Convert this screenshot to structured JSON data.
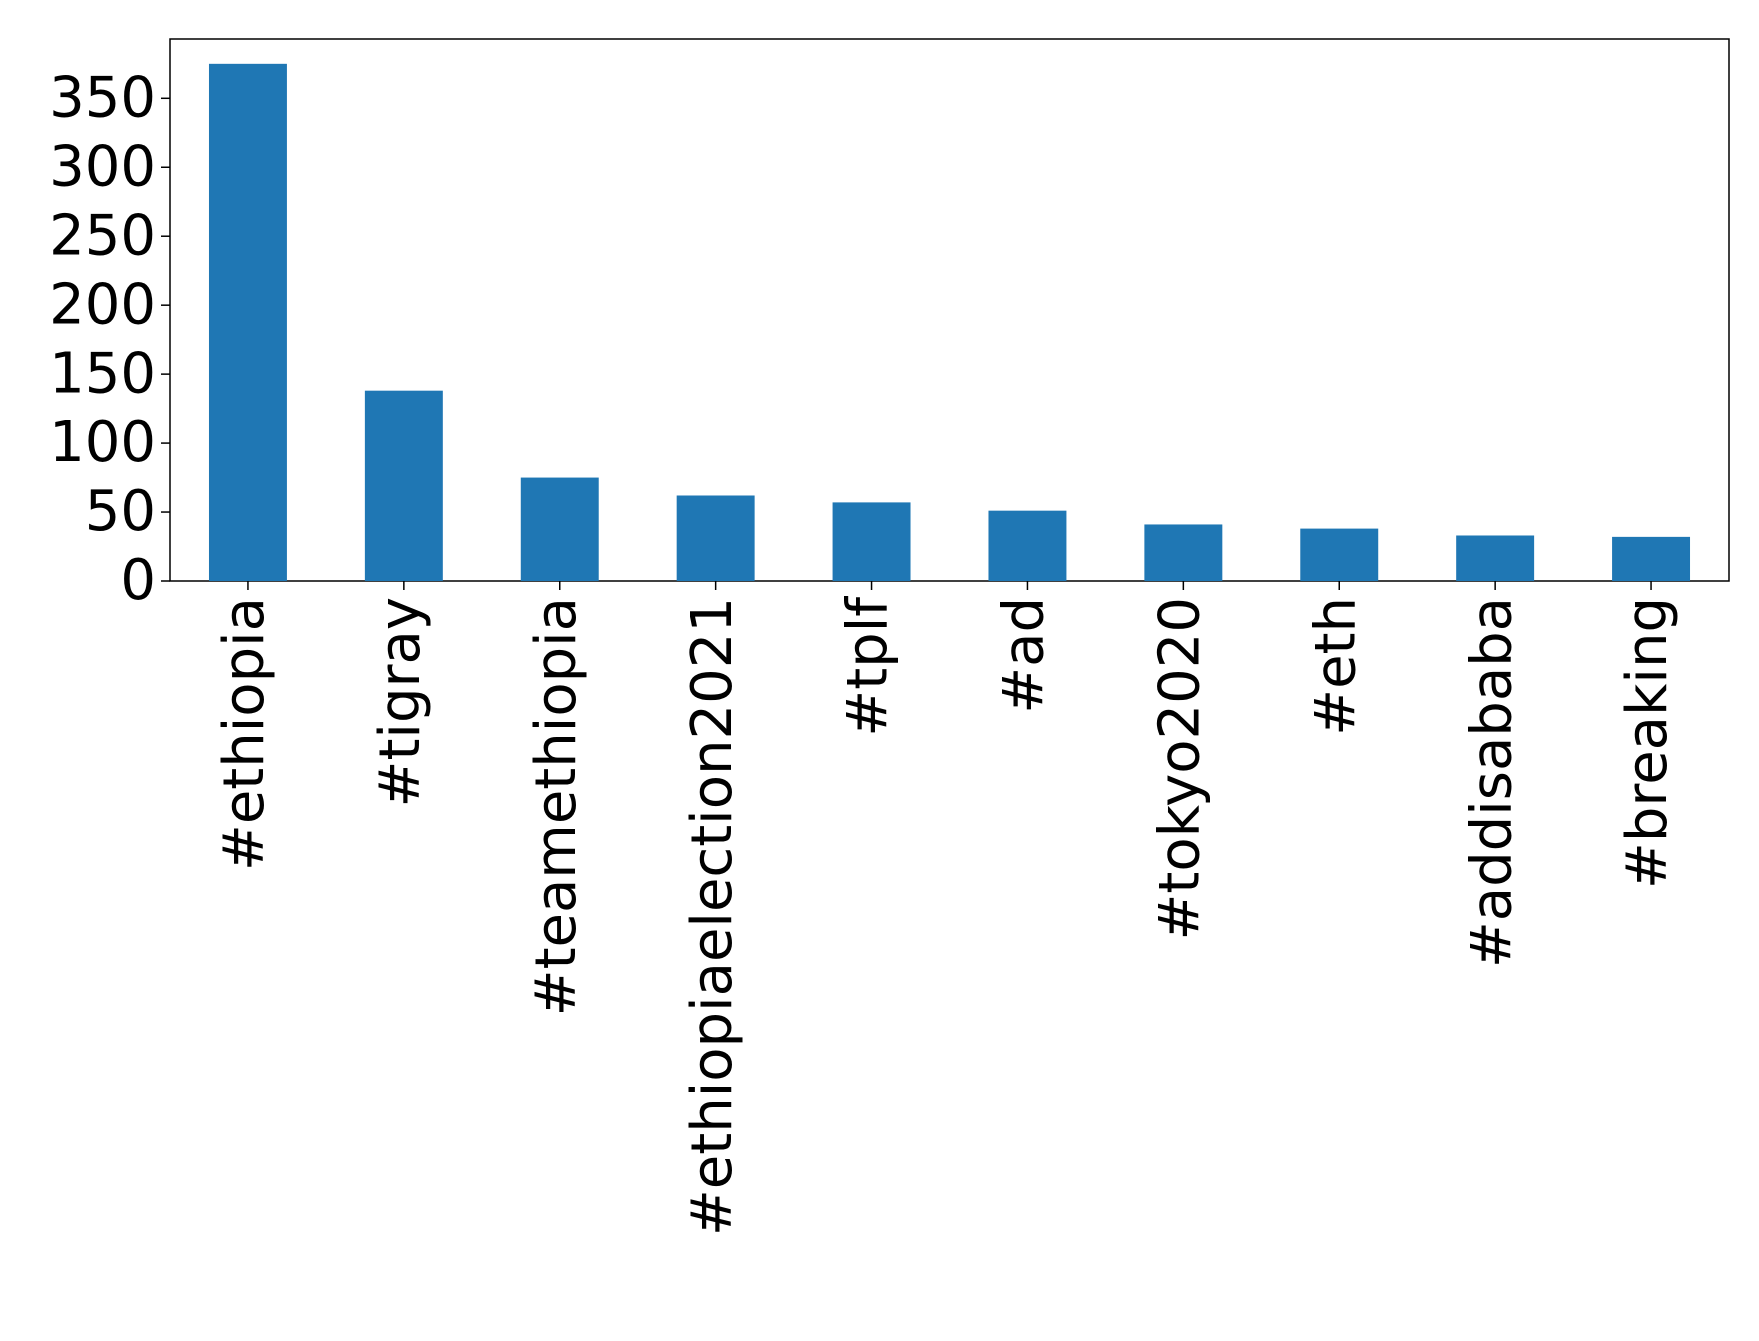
{
  "chart_data": {
    "type": "bar",
    "categories": [
      "#ethiopia",
      "#tigray",
      "#teamethiopia",
      "#ethiopiaelection2021",
      "#tplf",
      "#ad",
      "#tokyo2020",
      "#eth",
      "#addisababa",
      "#breaking"
    ],
    "values": [
      375,
      138,
      75,
      62,
      57,
      51,
      41,
      38,
      33,
      32
    ],
    "color": "#1f77b4",
    "ylim": [
      0,
      393
    ],
    "yticks": [
      0,
      50,
      100,
      150,
      200,
      250,
      300,
      350
    ],
    "grid": false
  }
}
